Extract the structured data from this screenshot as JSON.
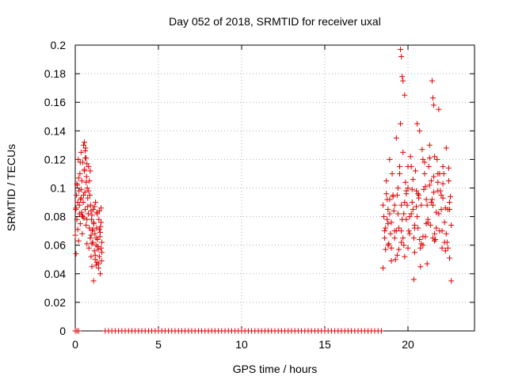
{
  "chart_data": {
    "type": "scatter",
    "title": "Day 052 of 2018, SRMTID for receiver uxal",
    "xlabel": "GPS time / hours",
    "ylabel": "SRMTID / TECUs",
    "xlim": [
      0,
      24
    ],
    "ylim": [
      0,
      0.2
    ],
    "xticks": [
      0,
      5,
      10,
      15,
      20
    ],
    "xtick_labels": [
      "0",
      "5",
      "10",
      "15",
      "20"
    ],
    "yticks": [
      0,
      0.02,
      0.04,
      0.06,
      0.08,
      0.1,
      0.12,
      0.14,
      0.16,
      0.18,
      0.2
    ],
    "ytick_labels": [
      "0",
      "0.02",
      "0.04",
      "0.06",
      "0.08",
      "0.1",
      "0.12",
      "0.14",
      "0.16",
      "0.18",
      "0.2"
    ],
    "grid": true,
    "marker": "+",
    "marker_color": "#e00000",
    "series": [
      {
        "x": [
          0.0,
          0.03,
          0.05,
          0.08,
          0.1,
          0.12,
          0.15,
          0.18,
          0.2,
          0.22,
          0.25,
          0.28,
          0.3,
          0.32,
          0.35,
          0.38,
          0.4,
          0.42,
          0.45,
          0.48,
          0.5,
          0.52,
          0.55,
          0.58,
          0.6,
          0.62,
          0.65,
          0.68,
          0.7,
          0.72,
          0.75,
          0.78,
          0.8,
          0.82,
          0.85,
          0.88,
          0.9,
          0.92,
          0.95,
          0.98,
          1.0,
          1.02,
          1.05,
          1.08,
          1.1,
          1.12,
          1.15,
          1.18,
          1.2,
          1.22,
          1.25,
          1.28,
          1.3,
          1.32,
          1.35,
          1.38,
          1.4,
          1.42,
          1.45,
          1.48,
          1.5,
          1.52,
          1.55,
          1.58,
          1.6,
          0.15,
          0.25,
          0.35,
          0.45,
          0.55,
          0.65,
          0.75,
          0.85,
          0.95,
          1.05,
          1.15,
          1.25,
          1.35,
          1.45,
          1.55,
          0.1,
          0.3,
          0.5,
          0.7,
          0.9,
          1.1,
          1.3,
          1.5,
          0.2,
          0.4,
          0.6,
          0.8,
          1.0,
          1.2,
          1.4,
          1.6,
          0.05,
          0.35,
          0.65,
          0.95,
          1.25,
          1.55,
          0.55,
          0.6,
          0.7,
          1.0,
          1.45
        ],
        "y": [
          0.067,
          0.085,
          0.054,
          0.095,
          0.078,
          0.102,
          0.071,
          0.12,
          0.063,
          0.098,
          0.088,
          0.11,
          0.075,
          0.092,
          0.125,
          0.083,
          0.105,
          0.068,
          0.118,
          0.09,
          0.13,
          0.079,
          0.112,
          0.097,
          0.085,
          0.128,
          0.074,
          0.108,
          0.061,
          0.1,
          0.093,
          0.082,
          0.115,
          0.058,
          0.072,
          0.095,
          0.065,
          0.088,
          0.052,
          0.078,
          0.045,
          0.07,
          0.062,
          0.085,
          0.035,
          0.075,
          0.056,
          0.068,
          0.05,
          0.09,
          0.06,
          0.072,
          0.048,
          0.082,
          0.064,
          0.057,
          0.044,
          0.078,
          0.052,
          0.066,
          0.04,
          0.073,
          0.058,
          0.049,
          0.062,
          0.09,
          0.082,
          0.099,
          0.08,
          0.113,
          0.121,
          0.087,
          0.105,
          0.067,
          0.071,
          0.087,
          0.065,
          0.059,
          0.071,
          0.086,
          0.103,
          0.118,
          0.095,
          0.078,
          0.112,
          0.076,
          0.083,
          0.069,
          0.107,
          0.081,
          0.121,
          0.098,
          0.061,
          0.053,
          0.047,
          0.055,
          0.086,
          0.093,
          0.104,
          0.084,
          0.046,
          0.076,
          0.132,
          0.126,
          0.117,
          0.081,
          0.084
        ]
      },
      {
        "x": [
          18.5,
          18.6,
          18.7,
          18.8,
          18.9,
          19.0,
          19.1,
          19.2,
          19.3,
          19.4,
          19.5,
          19.6,
          19.7,
          19.8,
          19.9,
          20.0,
          20.1,
          20.2,
          20.3,
          20.4,
          20.5,
          20.6,
          20.7,
          20.8,
          20.9,
          21.0,
          21.1,
          21.2,
          21.3,
          21.4,
          21.5,
          21.6,
          21.7,
          21.8,
          21.9,
          22.0,
          22.1,
          22.2,
          22.3,
          22.4,
          22.5,
          22.6,
          18.55,
          18.65,
          18.75,
          18.85,
          18.95,
          19.05,
          19.15,
          19.25,
          19.35,
          19.45,
          19.55,
          19.65,
          19.75,
          19.85,
          19.95,
          20.05,
          20.15,
          20.25,
          20.35,
          20.45,
          20.55,
          20.65,
          20.75,
          20.85,
          20.95,
          21.05,
          21.15,
          21.25,
          21.35,
          21.45,
          21.55,
          21.65,
          21.75,
          21.85,
          21.95,
          22.05,
          22.15,
          22.25,
          22.35,
          22.45,
          22.55,
          18.6,
          18.8,
          19.0,
          19.2,
          19.4,
          19.6,
          19.8,
          20.0,
          20.2,
          20.4,
          20.6,
          20.8,
          21.0,
          21.2,
          21.4,
          21.6,
          21.8,
          22.0,
          22.2,
          22.4,
          18.7,
          18.9,
          19.1,
          19.3,
          19.5,
          19.7,
          19.9,
          20.1,
          20.3,
          20.5,
          20.7,
          20.9,
          21.1,
          21.3,
          21.5,
          21.7,
          21.9,
          22.1,
          22.3,
          22.5,
          19.55,
          19.6,
          19.65,
          19.7,
          19.8,
          21.45,
          21.5,
          21.55,
          21.85,
          20.55,
          18.5,
          18.65,
          18.8,
          19.0,
          19.35,
          19.6,
          20.0,
          20.35,
          20.75,
          21.15,
          21.6,
          22.05,
          22.5,
          18.75,
          19.2,
          19.75,
          20.25,
          20.65,
          21.05,
          21.55,
          22.1,
          22.45,
          18.9,
          19.45,
          19.9,
          20.4,
          20.9,
          21.3,
          21.8,
          22.25,
          22.6
        ],
        "y": [
          0.088,
          0.065,
          0.105,
          0.075,
          0.12,
          0.058,
          0.095,
          0.07,
          0.135,
          0.082,
          0.11,
          0.062,
          0.125,
          0.09,
          0.078,
          0.1,
          0.068,
          0.115,
          0.085,
          0.055,
          0.098,
          0.072,
          0.14,
          0.088,
          0.06,
          0.118,
          0.092,
          0.076,
          0.13,
          0.105,
          0.065,
          0.122,
          0.083,
          0.11,
          0.07,
          0.095,
          0.115,
          0.062,
          0.128,
          0.085,
          0.09,
          0.074,
          0.08,
          0.072,
          0.092,
          0.061,
          0.068,
          0.11,
          0.084,
          0.05,
          0.095,
          0.072,
          0.145,
          0.078,
          0.06,
          0.104,
          0.088,
          0.07,
          0.122,
          0.09,
          0.065,
          0.112,
          0.08,
          0.095,
          0.058,
          0.127,
          0.099,
          0.066,
          0.088,
          0.115,
          0.074,
          0.092,
          0.108,
          0.064,
          0.12,
          0.082,
          0.098,
          0.07,
          0.11,
          0.086,
          0.062,
          0.105,
          0.094,
          0.07,
          0.085,
          0.076,
          0.065,
          0.1,
          0.088,
          0.052,
          0.115,
          0.082,
          0.072,
          0.096,
          0.061,
          0.11,
          0.078,
          0.09,
          0.068,
          0.104,
          0.085,
          0.076,
          0.058,
          0.096,
          0.082,
          0.094,
          0.07,
          0.115,
          0.065,
          0.098,
          0.08,
          0.106,
          0.087,
          0.064,
          0.12,
          0.075,
          0.102,
          0.088,
          0.072,
          0.11,
          0.093,
          0.068,
          0.085,
          0.197,
          0.192,
          0.178,
          0.175,
          0.165,
          0.175,
          0.163,
          0.158,
          0.155,
          0.145,
          0.044,
          0.057,
          0.06,
          0.049,
          0.053,
          0.07,
          0.058,
          0.036,
          0.045,
          0.047,
          0.063,
          0.058,
          0.051,
          0.078,
          0.088,
          0.082,
          0.099,
          0.093,
          0.101,
          0.097,
          0.103,
          0.114,
          0.092,
          0.057,
          0.096,
          0.074,
          0.066,
          0.121,
          0.098,
          0.056,
          0.035
        ]
      },
      {
        "x": [
          0.0,
          0.1,
          0.2,
          1.8,
          2.0,
          2.2,
          2.4,
          2.6,
          2.8,
          3.0,
          3.2,
          3.4,
          3.6,
          3.8,
          4.0,
          4.2,
          4.4,
          4.6,
          4.8,
          5.0,
          5.2,
          5.4,
          5.6,
          5.8,
          6.0,
          6.2,
          6.4,
          6.6,
          6.8,
          7.0,
          7.2,
          7.4,
          7.6,
          7.8,
          8.0,
          8.2,
          8.4,
          8.6,
          8.8,
          9.0,
          9.2,
          9.4,
          9.6,
          9.8,
          10.0,
          10.2,
          10.4,
          10.6,
          10.8,
          11.0,
          11.2,
          11.4,
          11.6,
          11.8,
          12.0,
          12.2,
          12.4,
          12.6,
          12.8,
          13.0,
          13.2,
          13.4,
          13.6,
          13.8,
          14.0,
          14.2,
          14.4,
          14.6,
          14.8,
          15.0,
          15.2,
          15.4,
          15.6,
          15.8,
          16.0,
          16.2,
          16.4,
          16.6,
          16.8,
          17.0,
          17.2,
          17.4,
          17.6,
          17.8,
          18.0,
          18.2,
          18.4
        ],
        "y": [
          0,
          0,
          0,
          0,
          0,
          0,
          0,
          0,
          0,
          0,
          0,
          0,
          0,
          0,
          0,
          0,
          0,
          0,
          0,
          0,
          0,
          0,
          0,
          0,
          0,
          0,
          0,
          0,
          0,
          0,
          0,
          0,
          0,
          0,
          0,
          0,
          0,
          0,
          0,
          0,
          0,
          0,
          0,
          0,
          0,
          0,
          0,
          0,
          0,
          0,
          0,
          0,
          0,
          0,
          0,
          0,
          0,
          0,
          0,
          0,
          0,
          0,
          0,
          0,
          0,
          0,
          0,
          0,
          0,
          0,
          0,
          0,
          0,
          0,
          0,
          0,
          0,
          0,
          0,
          0,
          0,
          0,
          0,
          0,
          0,
          0,
          0
        ]
      }
    ]
  }
}
